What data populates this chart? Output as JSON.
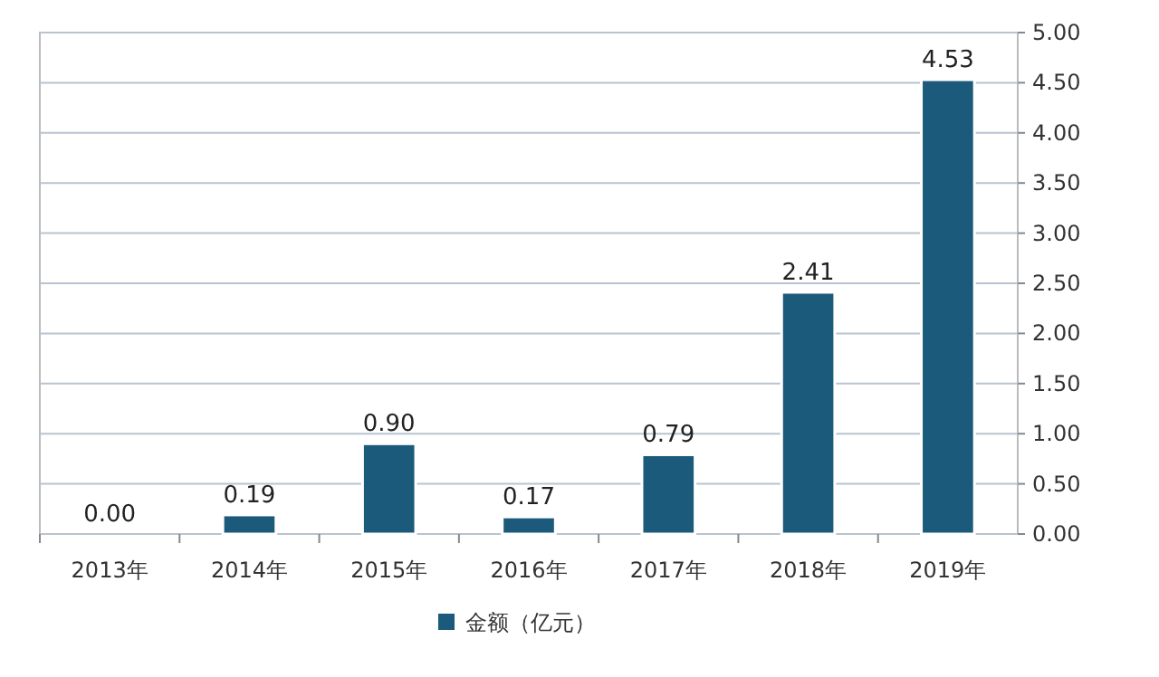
{
  "chart_data": {
    "type": "bar",
    "categories": [
      "2013年",
      "2014年",
      "2015年",
      "2016年",
      "2017年",
      "2018年",
      "2019年"
    ],
    "series": [
      {
        "name": "金额（亿元）",
        "color": "#1b5a7a",
        "values": [
          0,
          0.19,
          0.9,
          0.17,
          0.79,
          2.41,
          4.53
        ],
        "value_labels": [
          "0.00",
          "0.19",
          "0.90",
          "0.17",
          "0.79",
          "2.41",
          "4.53"
        ]
      }
    ],
    "ylim": [
      0,
      5
    ],
    "yticks": [
      {
        "value": 0,
        "label": "0.00"
      },
      {
        "value": 0.5,
        "label": "0.50"
      },
      {
        "value": 1,
        "label": "1.00"
      },
      {
        "value": 1.5,
        "label": "1.50"
      },
      {
        "value": 2,
        "label": "2.00"
      },
      {
        "value": 2.5,
        "label": "2.50"
      },
      {
        "value": 3,
        "label": "3.00"
      },
      {
        "value": 3.5,
        "label": "3.50"
      },
      {
        "value": 4,
        "label": "4.00"
      },
      {
        "value": 4.5,
        "label": "4.50"
      },
      {
        "value": 5,
        "label": "5.00"
      }
    ],
    "grid": "y",
    "legend": "bottom"
  }
}
